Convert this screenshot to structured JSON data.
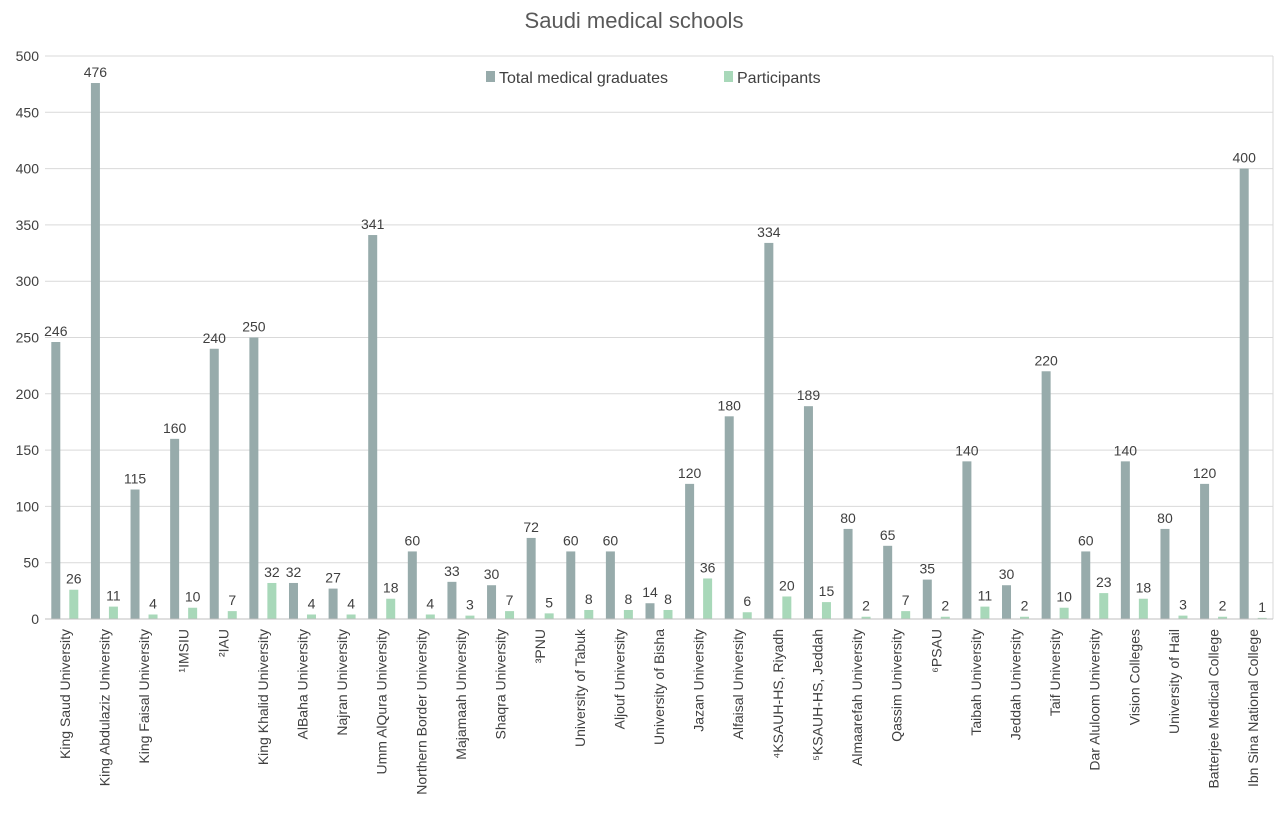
{
  "chart_data": {
    "type": "bar",
    "title": "Saudi medical schools",
    "xlabel": "",
    "ylabel": "",
    "ylim": [
      0,
      500
    ],
    "yticks": [
      0,
      50,
      100,
      150,
      200,
      250,
      300,
      350,
      400,
      450,
      500
    ],
    "grid": true,
    "legend_position": "top-center",
    "categories": [
      "King Saud University",
      "King Abdulaziz University",
      "King Faisal University",
      "¹IMSIU",
      "²IAU",
      "King Khalid University",
      "AlBaha University",
      "Najran University",
      "Umm AlQura University",
      "Northern Border University",
      "Majamaah University",
      "Shaqra University",
      "³PNU",
      "University of Tabuk",
      "Aljouf University",
      "University of Bisha",
      "Jazan University",
      "Alfaisal University",
      "⁴KSAUH-HS, Riyadh",
      "⁵KSAUH-HS, Jeddah",
      "Almaarefah University",
      "Qassim University",
      "⁶PSAU",
      "Taibah University",
      "Jeddah University",
      "Taif University",
      "Dar Aluloom University",
      "Vision Colleges",
      "University of Hail",
      "Batterjee Medical College",
      "Ibn Sina National College"
    ],
    "series": [
      {
        "name": "Total medical graduates",
        "color": "#97abab",
        "values": [
          246,
          476,
          115,
          160,
          240,
          250,
          32,
          27,
          341,
          60,
          33,
          30,
          72,
          60,
          60,
          14,
          120,
          180,
          334,
          189,
          80,
          65,
          35,
          140,
          30,
          220,
          60,
          140,
          80,
          120,
          400
        ]
      },
      {
        "name": "Participants",
        "color": "#a8d8b9",
        "values": [
          26,
          11,
          4,
          10,
          7,
          32,
          4,
          4,
          18,
          4,
          3,
          7,
          5,
          8,
          8,
          8,
          36,
          6,
          20,
          15,
          2,
          7,
          2,
          11,
          2,
          10,
          23,
          18,
          3,
          2,
          1
        ]
      }
    ]
  }
}
